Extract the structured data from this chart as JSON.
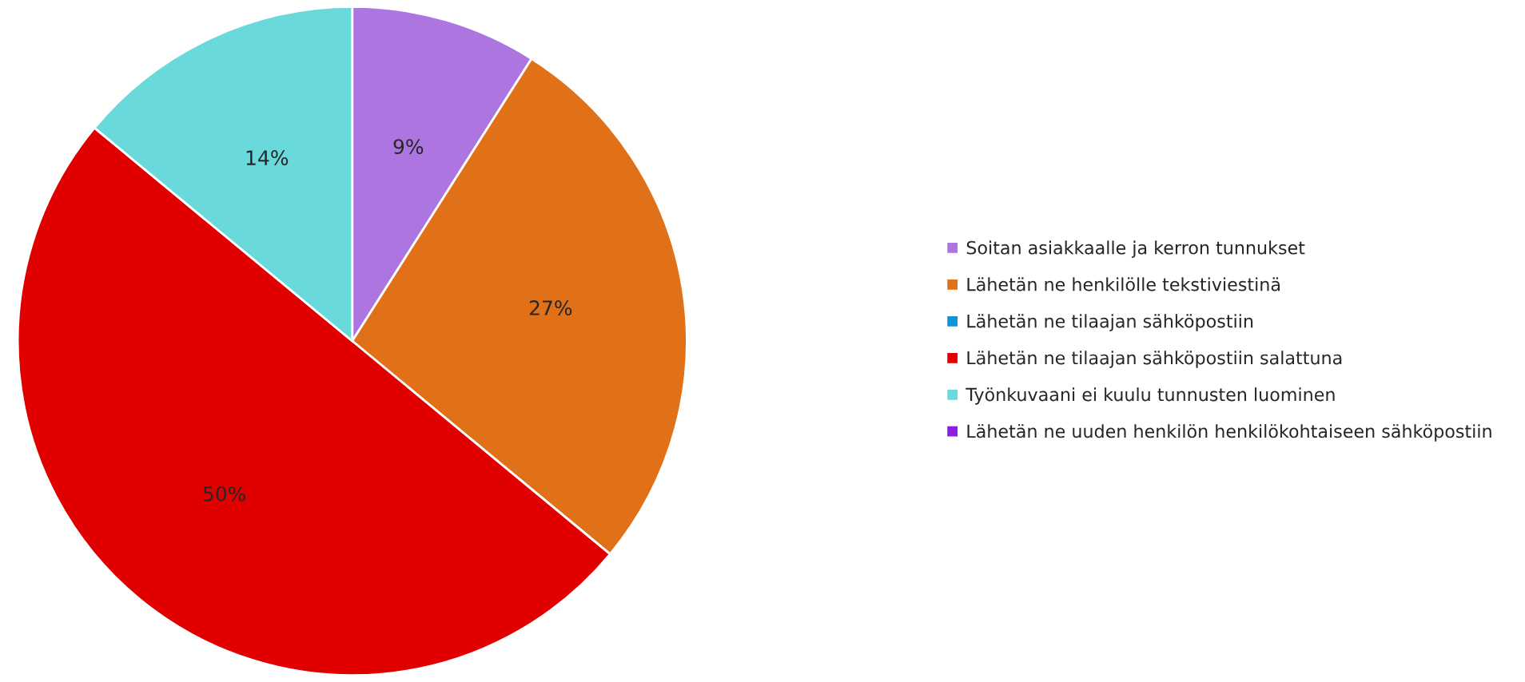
{
  "chart_data": {
    "type": "pie",
    "categories": [
      "Soitan asiakkaalle ja kerron tunnukset",
      "Lähetän ne henkilölle tekstiviestinä",
      "Lähetän ne tilaajan sähköpostiin",
      "Lähetän ne tilaajan sähköpostiin salattuna",
      "Työnkuvaani ei kuulu tunnusten luominen",
      "Lähetän ne uuden henkilön henkilökohtaiseen sähköpostiin"
    ],
    "values": [
      9,
      27,
      0,
      50,
      14,
      0
    ],
    "colors": [
      "#ad75e0",
      "#e07119",
      "#0d95d6",
      "#e00000",
      "#69d9dc",
      "#8b1ee0"
    ],
    "value_labels": [
      "9%",
      "27%",
      null,
      "50%",
      "14%",
      null
    ],
    "legend": "right"
  }
}
